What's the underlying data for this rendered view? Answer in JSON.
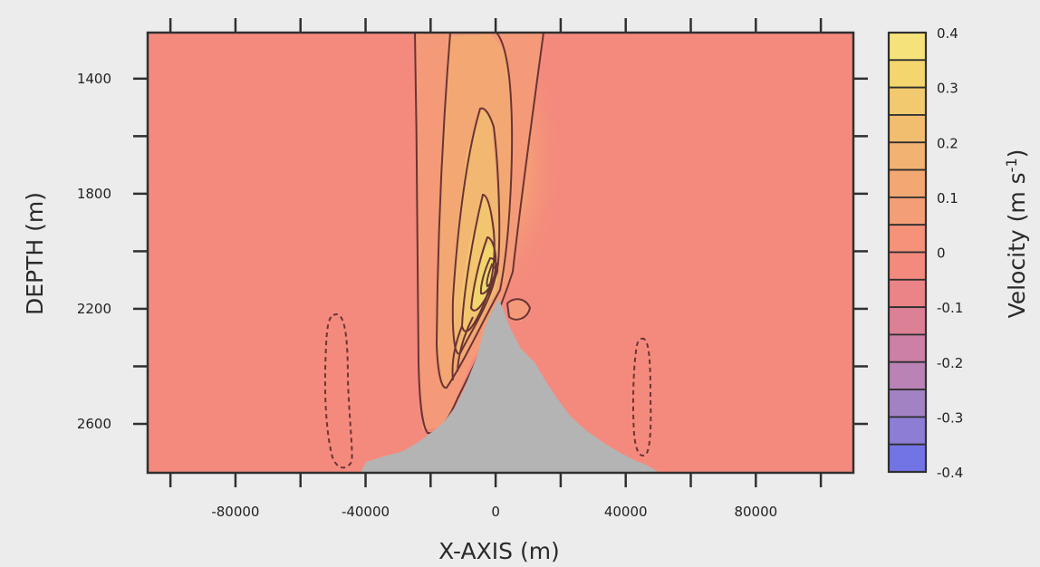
{
  "chart_data": {
    "type": "heatmap",
    "title": "",
    "xlabel": "X-AXIS (m)",
    "ylabel": "DEPTH (m)",
    "colorbar_label": "Velocity (m s",
    "colorbar_exponent": "-1",
    "colorbar_label_suffix": ")",
    "xlim": [
      -107000,
      110000
    ],
    "ylim": [
      2770,
      1240
    ],
    "x_ticks": [
      {
        "value": -80000,
        "label": "-80000"
      },
      {
        "value": -40000,
        "label": "-40000"
      },
      {
        "value": 0,
        "label": "0"
      },
      {
        "value": 40000,
        "label": "40000"
      },
      {
        "value": 80000,
        "label": "80000"
      }
    ],
    "x_minor_ticks": [
      -100000,
      -60000,
      -20000,
      20000,
      60000,
      100000
    ],
    "y_ticks": [
      {
        "value": 1400,
        "label": "1400"
      },
      {
        "value": 1800,
        "label": "1800"
      },
      {
        "value": 2200,
        "label": "2200"
      },
      {
        "value": 2600,
        "label": "2600"
      }
    ],
    "y_minor_ticks": [
      1600,
      2000,
      2400
    ],
    "colorbar": {
      "levels": [
        0.4,
        0.35,
        0.3,
        0.25,
        0.2,
        0.15,
        0.1,
        0.05,
        0,
        -0.05,
        -0.1,
        -0.15,
        -0.2,
        -0.25,
        -0.3,
        -0.35,
        -0.4
      ],
      "bands": [
        "#f5e27a",
        "#f3d66e",
        "#f2c96e",
        "#f1bd6f",
        "#f2b271",
        "#f3a874",
        "#f49e77",
        "#f6927a",
        "#f48a7d",
        "#eb8487",
        "#dc8096",
        "#cc80a6",
        "#b983b6",
        "#a382c4",
        "#8d7dd4",
        "#7274e6"
      ],
      "tick_labels": [
        "0.4",
        "0.3",
        "0.2",
        "0.1",
        "0",
        "-0.1",
        "-0.2",
        "-0.3",
        "-0.4"
      ],
      "tick_values": [
        0.4,
        0.3,
        0.2,
        0.1,
        0,
        -0.1,
        -0.2,
        -0.3,
        -0.4
      ]
    },
    "background_color": "#f48a7d",
    "topography_color": "#b4b4b4",
    "grid": false,
    "legend": "colorbar-right"
  }
}
